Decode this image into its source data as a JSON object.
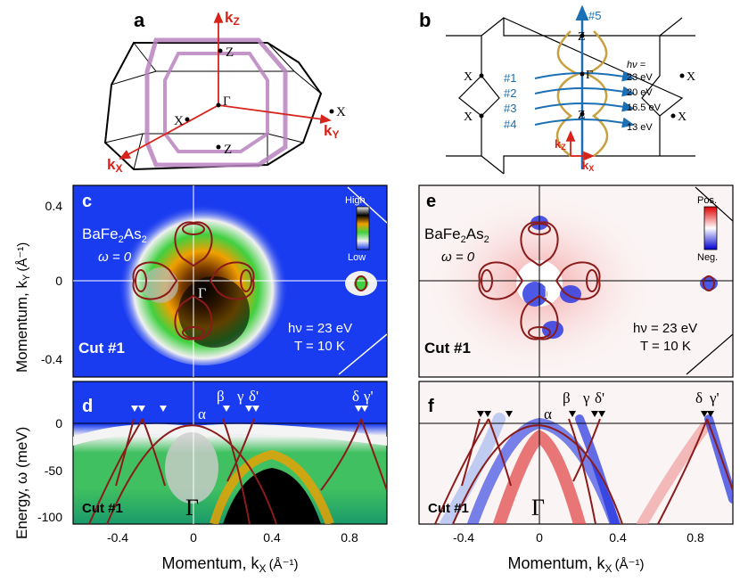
{
  "panels": {
    "a": "a",
    "b": "b",
    "c": "c",
    "d": "d",
    "e": "e",
    "f": "f"
  },
  "bz": {
    "kz": "k",
    "kz_sub": "Z",
    "ky": "k",
    "ky_sub": "Y",
    "kx": "k",
    "kx_sub": "X",
    "z_top": "Z",
    "z_bot": "Z",
    "gamma": "Γ",
    "x_right": "X",
    "x_left": "X"
  },
  "cuts_diagram": {
    "hash5": "#5",
    "cuts": [
      {
        "label": "#1",
        "hv": "23 eV"
      },
      {
        "label": "#2",
        "hv": "20 eV"
      },
      {
        "label": "#3",
        "hv": "16.5 eV"
      },
      {
        "label": "#4",
        "hv": "13 eV"
      }
    ],
    "hv_label": "hν =",
    "z_top": "Z",
    "gamma": "Γ",
    "z_mid": "Z",
    "x_left": "X",
    "x_right": "X",
    "x_left2": "X",
    "x_right2": "X",
    "kz": "k",
    "kz_sub": "Z",
    "kx": "k",
    "kx_sub": "X"
  },
  "map": {
    "compound": "BaFe",
    "sub2": "2",
    "as": "As",
    "omega": "ω = 0",
    "hv": "hν = 23 eV",
    "T": "T = 10 K",
    "cut": "Cut #1",
    "gamma": "Γ",
    "cbar_high": "High",
    "cbar_low": "Low",
    "cbar_pos": "Pos.",
    "cbar_neg": "Neg.",
    "yticks": [
      "0.4",
      "0",
      "-0.4"
    ],
    "ylabel": "Momentum, k",
    "ylabel_sub": "Y",
    "ylabel_unit": "(Å⁻¹)"
  },
  "dispersion": {
    "cut": "Cut #1",
    "gamma": "Γ",
    "bands": [
      "α",
      "β",
      "γ",
      "δ'",
      "δ",
      "γ'"
    ],
    "yticks": [
      "0",
      "-50",
      "-100"
    ],
    "ylabel": "Energy, ω (meV)",
    "xticks": [
      "-0.4",
      "0",
      "0.4",
      "0.8"
    ],
    "xlabel": "Momentum, k",
    "xlabel_sub": "X",
    "xlabel_unit": "(Å⁻¹)"
  },
  "colors": {
    "fs_contour": "#8b1a1a",
    "arrow_blue": "#1a6fb5",
    "axis_red": "#d8231b",
    "bz_purple": "#b882c0",
    "map_bg": "#1a3cf0"
  }
}
